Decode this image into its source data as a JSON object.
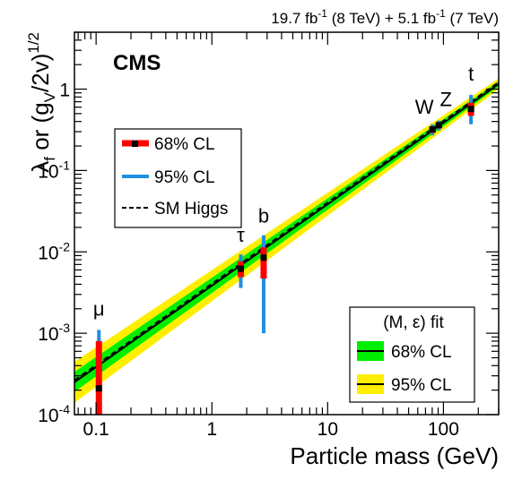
{
  "chart_data": {
    "type": "scatter",
    "title": "",
    "header_text": "19.7 fb-1 (8 TeV) + 5.1 fb-1 (7 TeV)",
    "header_parts": {
      "lumi_8tev": "19.7 fb",
      "lumi_8tev_sup": "-1",
      "energy_8tev": " (8 TeV) +  ",
      "lumi_7tev": "5.1 fb",
      "lumi_7tev_sup": "-1",
      "energy_7tev": " (7 TeV)"
    },
    "experiment_label": "CMS",
    "xlabel": "Particle mass (GeV)",
    "ylabel_parts": {
      "lambda": "λ",
      "lambda_sub": "f",
      "mid": " or (g",
      "g_sub": "V",
      "close": "/2v)",
      "power": "1/2"
    },
    "xscale": "log",
    "yscale": "log",
    "xlim": [
      0.065,
      300
    ],
    "ylim": [
      0.0001,
      5
    ],
    "x_ticks": [
      {
        "value": 0.1,
        "label": "0.1"
      },
      {
        "value": 1,
        "label": "1"
      },
      {
        "value": 10,
        "label": "10"
      },
      {
        "value": 100,
        "label": "100"
      }
    ],
    "y_ticks": [
      {
        "value": 0.0001,
        "base": "10",
        "exp": "-4"
      },
      {
        "value": 0.001,
        "base": "10",
        "exp": "-3"
      },
      {
        "value": 0.01,
        "base": "10",
        "exp": "-2"
      },
      {
        "value": 0.1,
        "base": "10",
        "exp": "-1"
      },
      {
        "value": 1,
        "base": "1",
        "exp": ""
      }
    ],
    "points": [
      {
        "name": "μ",
        "x": 0.1057,
        "y": 0.00021,
        "cl68": [
          0.0001,
          0.0008
        ],
        "cl95": [
          0.0001,
          0.0011
        ]
      },
      {
        "name": "τ",
        "x": 1.777,
        "y": 0.0062,
        "cl68": [
          0.0049,
          0.0076
        ],
        "cl95": [
          0.0036,
          0.0093
        ]
      },
      {
        "name": "b",
        "x": 2.8,
        "y": 0.0085,
        "cl68": [
          0.0047,
          0.0114
        ],
        "cl95": [
          0.001,
          0.016
        ]
      },
      {
        "name": "W",
        "x": 80.4,
        "y": 0.32,
        "cl68": [
          0.29,
          0.345
        ],
        "cl95": [
          0.27,
          0.37
        ]
      },
      {
        "name": "Z",
        "x": 91.2,
        "y": 0.36,
        "cl68": [
          0.33,
          0.385
        ],
        "cl95": [
          0.31,
          0.41
        ]
      },
      {
        "name": "t",
        "x": 173,
        "y": 0.57,
        "cl68": [
          0.47,
          0.68
        ],
        "cl95": [
          0.37,
          0.85
        ]
      }
    ],
    "sm_line": {
      "name": "SM Higgs",
      "slope": 1,
      "y_at_1gev": 0.00405
    },
    "fit": {
      "name": "(M, ε) fit",
      "y_at_1gev": 0.00385,
      "epsilon": 0.0,
      "band68": {
        "low_ratio_left": 0.76,
        "high_ratio_left": 1.34,
        "low_ratio_right": 0.93,
        "high_ratio_right": 1.08
      },
      "band95": {
        "low_ratio_left": 0.56,
        "high_ratio_left": 1.78,
        "low_ratio_right": 0.86,
        "high_ratio_right": 1.17
      }
    },
    "legend_left": {
      "placement": "upper-left",
      "entries": [
        "68% CL",
        "95% CL",
        "SM Higgs"
      ]
    },
    "legend_right": {
      "placement": "lower-right",
      "title": "(M, ε) fit",
      "entries": [
        "68% CL",
        "95% CL"
      ]
    },
    "colors": {
      "cl68_point": "#ff0000",
      "cl95_point": "#1f8fe0",
      "band68": "#00ee00",
      "band95": "#ffee00",
      "central": "#000000"
    }
  }
}
